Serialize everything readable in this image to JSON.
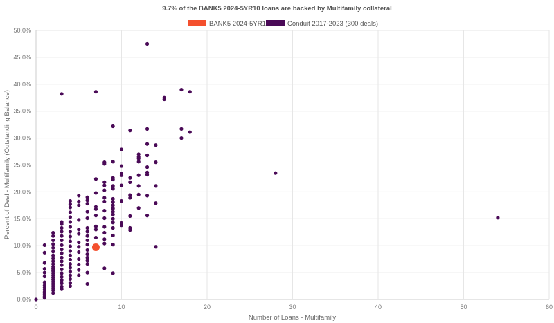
{
  "chart_data": {
    "type": "scatter",
    "title": "9.7% of the BANK5 2024-5YR10 loans are backed by Multifamily collateral",
    "xlabel": "Number of Loans - Multifamily",
    "ylabel": "Percent of Deal - Multifamily (Outstanding Balance)",
    "xlim": [
      0,
      60
    ],
    "ylim": [
      0,
      50
    ],
    "x_ticks": [
      "0",
      "10",
      "20",
      "30",
      "40",
      "50",
      "60"
    ],
    "y_ticks": [
      "0.0%",
      "5.0%",
      "10.0%",
      "15.0%",
      "20.0%",
      "25.0%",
      "30.0%",
      "35.0%",
      "40.0%",
      "45.0%",
      "50.0%"
    ],
    "grid": true,
    "legend_position": "top-center",
    "series": [
      {
        "name": "BANK5 2024-5YR10",
        "color": "#f4502e",
        "points": [
          [
            7,
            9.7
          ]
        ]
      },
      {
        "name": "Conduit 2017-2023 (300 deals)",
        "color": "#4a0a57",
        "points": [
          [
            0,
            0
          ],
          [
            1,
            0.3
          ],
          [
            1,
            0.6
          ],
          [
            1,
            1.0
          ],
          [
            1,
            1.4
          ],
          [
            1,
            1.8
          ],
          [
            1,
            2.2
          ],
          [
            1,
            2.6
          ],
          [
            1,
            3.2
          ],
          [
            1,
            4.3
          ],
          [
            1,
            5.0
          ],
          [
            1,
            5.7
          ],
          [
            1,
            6.8
          ],
          [
            1,
            8.7
          ],
          [
            1,
            10.1
          ],
          [
            2,
            1.2
          ],
          [
            2,
            1.7
          ],
          [
            2,
            2.1
          ],
          [
            2,
            2.5
          ],
          [
            2,
            2.9
          ],
          [
            2,
            3.3
          ],
          [
            2,
            3.7
          ],
          [
            2,
            4.1
          ],
          [
            2,
            4.5
          ],
          [
            2,
            4.9
          ],
          [
            2,
            5.3
          ],
          [
            2,
            5.7
          ],
          [
            2,
            6.1
          ],
          [
            2,
            6.6
          ],
          [
            2,
            7.1
          ],
          [
            2,
            7.6
          ],
          [
            2,
            8.2
          ],
          [
            2,
            8.9
          ],
          [
            2,
            9.6
          ],
          [
            2,
            10.3
          ],
          [
            2,
            11.0
          ],
          [
            2,
            11.8
          ],
          [
            2,
            12.4
          ],
          [
            3,
            1.9
          ],
          [
            3,
            2.4
          ],
          [
            3,
            3.0
          ],
          [
            3,
            3.6
          ],
          [
            3,
            4.2
          ],
          [
            3,
            4.9
          ],
          [
            3,
            5.6
          ],
          [
            3,
            6.4
          ],
          [
            3,
            7.1
          ],
          [
            3,
            7.8
          ],
          [
            3,
            8.6
          ],
          [
            3,
            9.3
          ],
          [
            3,
            10.1
          ],
          [
            3,
            11.0
          ],
          [
            3,
            11.8
          ],
          [
            3,
            12.6
          ],
          [
            3,
            13.3
          ],
          [
            3,
            14.0
          ],
          [
            3,
            14.4
          ],
          [
            3,
            38.2
          ],
          [
            4,
            2.5
          ],
          [
            4,
            3.1
          ],
          [
            4,
            3.8
          ],
          [
            4,
            4.5
          ],
          [
            4,
            5.2
          ],
          [
            4,
            5.9
          ],
          [
            4,
            6.6
          ],
          [
            4,
            7.4
          ],
          [
            4,
            8.2
          ],
          [
            4,
            9.0
          ],
          [
            4,
            9.9
          ],
          [
            4,
            10.8
          ],
          [
            4,
            11.7
          ],
          [
            4,
            12.6
          ],
          [
            4,
            13.5
          ],
          [
            4,
            14.4
          ],
          [
            4,
            15.3
          ],
          [
            4,
            16.2
          ],
          [
            4,
            17.1
          ],
          [
            4,
            17.7
          ],
          [
            4,
            18.3
          ],
          [
            5,
            4.5
          ],
          [
            5,
            5.5
          ],
          [
            5,
            6.5
          ],
          [
            5,
            7.5
          ],
          [
            5,
            8.8
          ],
          [
            5,
            9.8
          ],
          [
            5,
            10.6
          ],
          [
            5,
            12.2
          ],
          [
            5,
            13.0
          ],
          [
            5,
            14.8
          ],
          [
            5,
            17.5
          ],
          [
            5,
            18.2
          ],
          [
            5,
            19.3
          ],
          [
            6,
            2.9
          ],
          [
            6,
            5.0
          ],
          [
            6,
            6.6
          ],
          [
            6,
            7.2
          ],
          [
            6,
            7.8
          ],
          [
            6,
            8.4
          ],
          [
            6,
            9.2
          ],
          [
            6,
            10.2
          ],
          [
            6,
            11.0
          ],
          [
            6,
            11.8
          ],
          [
            6,
            12.6
          ],
          [
            6,
            13.3
          ],
          [
            6,
            15.1
          ],
          [
            6,
            16.3
          ],
          [
            6,
            17.8
          ],
          [
            6,
            18.4
          ],
          [
            6,
            19.0
          ],
          [
            7,
            11.5
          ],
          [
            7,
            13.0
          ],
          [
            7,
            13.6
          ],
          [
            7,
            15.6
          ],
          [
            7,
            16.8
          ],
          [
            7,
            17.2
          ],
          [
            7,
            19.8
          ],
          [
            7,
            22.4
          ],
          [
            7,
            38.6
          ],
          [
            8,
            5.8
          ],
          [
            8,
            10.4
          ],
          [
            8,
            11.2
          ],
          [
            8,
            12.4
          ],
          [
            8,
            13.5
          ],
          [
            8,
            15.1
          ],
          [
            8,
            16.5
          ],
          [
            8,
            18.2
          ],
          [
            8,
            18.9
          ],
          [
            8,
            20.3
          ],
          [
            8,
            21.2
          ],
          [
            8,
            21.8
          ],
          [
            8,
            25.2
          ],
          [
            8,
            25.5
          ],
          [
            9,
            4.9
          ],
          [
            9,
            10.2
          ],
          [
            9,
            11.9
          ],
          [
            9,
            13.3
          ],
          [
            9,
            14.3
          ],
          [
            9,
            15.0
          ],
          [
            9,
            15.8
          ],
          [
            9,
            16.3
          ],
          [
            9,
            16.9
          ],
          [
            9,
            17.5
          ],
          [
            9,
            18.1
          ],
          [
            9,
            18.7
          ],
          [
            9,
            20.6
          ],
          [
            9,
            21.1
          ],
          [
            9,
            22.3
          ],
          [
            9,
            22.6
          ],
          [
            9,
            25.6
          ],
          [
            9,
            32.2
          ],
          [
            10,
            13.8
          ],
          [
            10,
            14.2
          ],
          [
            10,
            18.3
          ],
          [
            10,
            21.2
          ],
          [
            10,
            23.1
          ],
          [
            10,
            23.4
          ],
          [
            10,
            24.8
          ],
          [
            10,
            27.9
          ],
          [
            11,
            12.9
          ],
          [
            11,
            13.3
          ],
          [
            11,
            15.5
          ],
          [
            11,
            18.9
          ],
          [
            11,
            19.4
          ],
          [
            11,
            21.8
          ],
          [
            11,
            22.6
          ],
          [
            11,
            31.4
          ],
          [
            12,
            17.0
          ],
          [
            12,
            19.5
          ],
          [
            12,
            21.1
          ],
          [
            12,
            23.1
          ],
          [
            12,
            25.6
          ],
          [
            12,
            26.2
          ],
          [
            12,
            26.5
          ],
          [
            12,
            27.0
          ],
          [
            13,
            15.6
          ],
          [
            13,
            19.3
          ],
          [
            13,
            23.2
          ],
          [
            13,
            23.6
          ],
          [
            13,
            24.6
          ],
          [
            13,
            26.8
          ],
          [
            13,
            28.9
          ],
          [
            13,
            31.7
          ],
          [
            13,
            47.5
          ],
          [
            14,
            9.8
          ],
          [
            14,
            17.9
          ],
          [
            14,
            21.1
          ],
          [
            14,
            25.5
          ],
          [
            14,
            28.7
          ],
          [
            15,
            37.2
          ],
          [
            15,
            37.5
          ],
          [
            17,
            30.0
          ],
          [
            17,
            31.7
          ],
          [
            17,
            39.0
          ],
          [
            18,
            31.1
          ],
          [
            18,
            38.6
          ],
          [
            28,
            23.5
          ],
          [
            54,
            15.2
          ]
        ]
      }
    ]
  }
}
